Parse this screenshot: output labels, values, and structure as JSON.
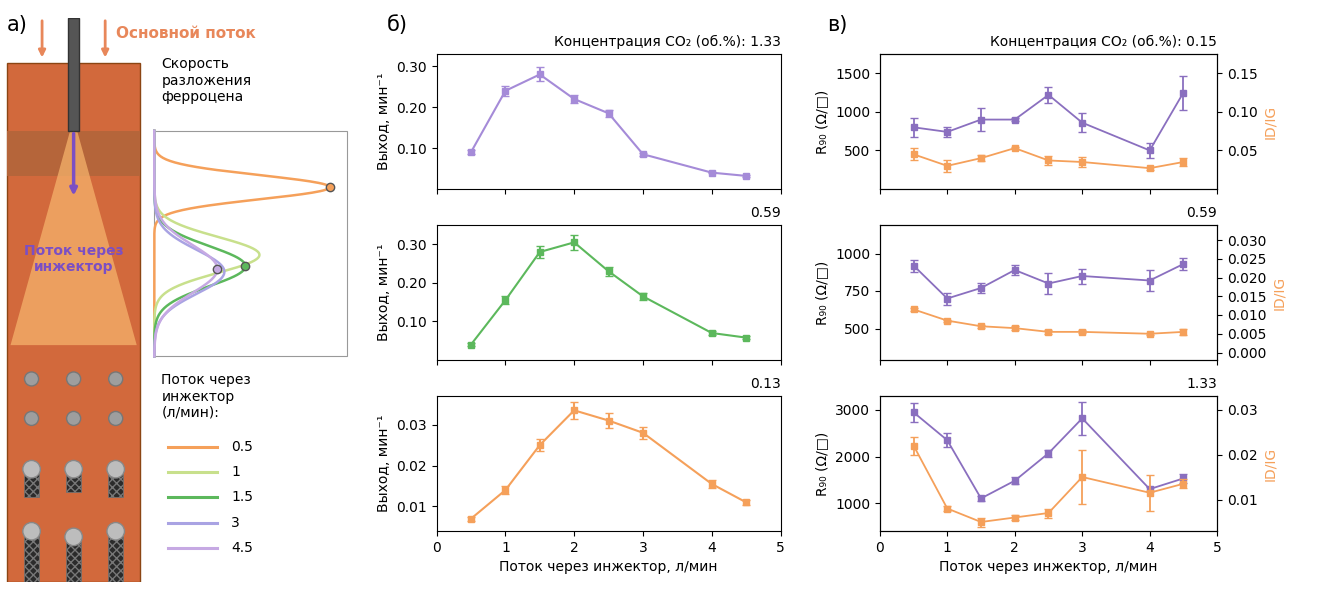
{
  "panel_labels": [
    "а)",
    "б)",
    "в)"
  ],
  "diagram": {
    "main_flow": "Основной поток",
    "injector_flow": "Поток через инжектор",
    "decomposition_rate": "Скорость разложения ферроцена",
    "legend_title": "Поток через инжектор (л/мин):",
    "legend": [
      {
        "label": "0.5",
        "color": "#f5a05a"
      },
      {
        "label": "1",
        "color": "#c8e08c"
      },
      {
        "label": "1.5",
        "color": "#5cb85c"
      },
      {
        "label": "3",
        "color": "#a9a3e3"
      },
      {
        "label": "4.5",
        "color": "#c6a9e3"
      }
    ]
  },
  "chart_data": [
    {
      "type": "line",
      "title": "Концентрация CO₂ (об.%): 1.33",
      "x": [
        0.5,
        1,
        1.5,
        2,
        2.5,
        3,
        4,
        4.5
      ],
      "values": [
        0.09,
        0.24,
        0.28,
        0.22,
        0.185,
        0.085,
        0.04,
        0.032
      ],
      "errors": [
        0.005,
        0.012,
        0.017,
        0.01,
        0.008,
        0.004,
        0.002,
        0.002
      ],
      "color": "#a58bd8",
      "marker": "square",
      "y_label": "Выход, мин⁻¹",
      "xlim": [
        0,
        5
      ],
      "xticks": [
        0,
        1,
        2,
        3,
        4,
        5
      ],
      "ylim": [
        0,
        0.33
      ],
      "yticks": [
        {
          "value": 0.1,
          "label": "0.10"
        },
        {
          "value": 0.2,
          "label": "0.20"
        },
        {
          "value": 0.3,
          "label": "0.30"
        }
      ],
      "tick_labels": "y"
    },
    {
      "type": "line",
      "title": "0.59",
      "x": [
        0.5,
        1,
        1.5,
        2,
        2.5,
        3,
        4,
        4.5
      ],
      "values": [
        0.04,
        0.155,
        0.28,
        0.305,
        0.23,
        0.165,
        0.07,
        0.058
      ],
      "errors": [
        0.003,
        0.01,
        0.015,
        0.02,
        0.012,
        0.01,
        0.005,
        0.003
      ],
      "color": "#5cb85c",
      "marker": "square",
      "y_label": "Выход, мин⁻¹",
      "xlim": [
        0,
        5
      ],
      "xticks": [
        0,
        1,
        2,
        3,
        4,
        5
      ],
      "ylim": [
        0,
        0.35
      ],
      "yticks": [
        {
          "value": 0.1,
          "label": "0.10"
        },
        {
          "value": 0.2,
          "label": "0.20"
        },
        {
          "value": 0.3,
          "label": "0.30"
        }
      ],
      "tick_labels": "y"
    },
    {
      "type": "line",
      "title": "0.13",
      "x": [
        0.5,
        1,
        1.5,
        2,
        2.5,
        3,
        4,
        4.5
      ],
      "values": [
        0.007,
        0.014,
        0.025,
        0.0335,
        0.031,
        0.028,
        0.0155,
        0.011
      ],
      "errors": [
        0.0005,
        0.001,
        0.0015,
        0.002,
        0.0018,
        0.0015,
        0.001,
        0.0007
      ],
      "color": "#f5a05a",
      "marker": "square",
      "y_label": "Выход, мин⁻¹",
      "x_label": "Поток через инжектор, л/мин",
      "xlim": [
        0,
        5
      ],
      "xticks": [
        0,
        1,
        2,
        3,
        4,
        5
      ],
      "ylim": [
        0.004,
        0.037
      ],
      "yticks": [
        0.01,
        0.02,
        0.03
      ]
    },
    {
      "type": "line",
      "title": "Концентрация CO₂ (об.%): 0.15",
      "x": [
        0.5,
        1,
        1.5,
        2,
        2.5,
        3,
        4,
        4.5
      ],
      "series": [
        {
          "name": "R₉₀ (Ω/□)",
          "color": "#8a6fbf",
          "marker": "square",
          "values": [
            800,
            740,
            900,
            900,
            1220,
            860,
            500,
            1250
          ],
          "errors": [
            120,
            70,
            150,
            20,
            100,
            120,
            100,
            220
          ]
        },
        {
          "name": "ID/IG",
          "color": "#f5a05a",
          "marker": "square",
          "axis": "y2",
          "values": [
            0.045,
            0.03,
            0.04,
            0.053,
            0.037,
            0.035,
            0.027,
            0.035
          ],
          "errors": [
            0.008,
            0.008,
            0.004,
            0.001,
            0.006,
            0.006,
            0.002,
            0.005
          ]
        }
      ],
      "xlim": [
        0,
        5
      ],
      "xticks": [
        0,
        1,
        2,
        3,
        4,
        5
      ],
      "ylim": [
        0,
        1750
      ],
      "yticks": [
        500,
        1000,
        1500
      ],
      "y2lim": [
        0,
        0.175
      ],
      "y2ticks": [
        0.05,
        {
          "value": 0.1,
          "label": "0.10"
        },
        0.15
      ],
      "tick_labels": "y"
    },
    {
      "type": "line",
      "title": "0.59",
      "x": [
        0.5,
        1,
        1.5,
        2,
        2.5,
        3,
        4,
        4.5
      ],
      "series": [
        {
          "name": "R₉₀ (Ω/□)",
          "color": "#8a6fbf",
          "marker": "square",
          "values": [
            920,
            700,
            770,
            890,
            800,
            850,
            820,
            930
          ],
          "errors": [
            40,
            40,
            35,
            35,
            70,
            50,
            70,
            40
          ]
        },
        {
          "name": "ID/IG",
          "color": "#f5a05a",
          "marker": "square",
          "axis": "y2",
          "values": [
            0.0115,
            0.0085,
            0.007,
            0.0065,
            0.0055,
            0.0055,
            0.005,
            0.0055
          ],
          "errors": [
            0.0003,
            0.0003,
            0.0004,
            0.0006,
            0.0005,
            0.0004,
            0.0003,
            0.0007
          ]
        }
      ],
      "xlim": [
        0,
        5
      ],
      "xticks": [
        0,
        1,
        2,
        3,
        4,
        5
      ],
      "ylim": [
        290,
        1190
      ],
      "yticks": [
        500,
        750,
        1000
      ],
      "y2lim": [
        -0.002,
        0.034
      ],
      "y2ticks": [
        {
          "value": 0,
          "label": "0.000"
        },
        0.005,
        {
          "value": 0.01,
          "label": "0.010"
        },
        0.015,
        {
          "value": 0.02,
          "label": "0.020"
        },
        0.025,
        {
          "value": 0.03,
          "label": "0.030"
        }
      ],
      "tick_labels": "y"
    },
    {
      "type": "line",
      "title": "1.33",
      "x": [
        0.5,
        1,
        1.5,
        2,
        2.5,
        3,
        4,
        4.5
      ],
      "series": [
        {
          "name": "R₉₀ (Ω/□)",
          "color": "#8a6fbf",
          "marker": "square",
          "values": [
            2950,
            2350,
            1100,
            1480,
            2070,
            2820,
            1300,
            1530
          ],
          "errors": [
            200,
            150,
            50,
            80,
            80,
            350,
            50,
            100
          ]
        },
        {
          "name": "ID/IG",
          "color": "#f5a05a",
          "marker": "square",
          "axis": "y2",
          "values": [
            0.022,
            0.008,
            0.005,
            0.006,
            0.007,
            0.015,
            0.0115,
            0.0135
          ],
          "errors": [
            0.002,
            0.0005,
            0.001,
            0.0005,
            0.001,
            0.006,
            0.004,
            0.001
          ]
        }
      ],
      "xlim": [
        0,
        5
      ],
      "xticks": [
        0,
        1,
        2,
        3,
        4,
        5
      ],
      "ylim": [
        400,
        3300
      ],
      "yticks": [
        1000,
        2000,
        3000
      ],
      "y2lim": [
        0.003,
        0.033
      ],
      "y2ticks": [
        0.01,
        0.02,
        0.03
      ],
      "x_label": "Поток через инжектор, л/мин"
    }
  ]
}
